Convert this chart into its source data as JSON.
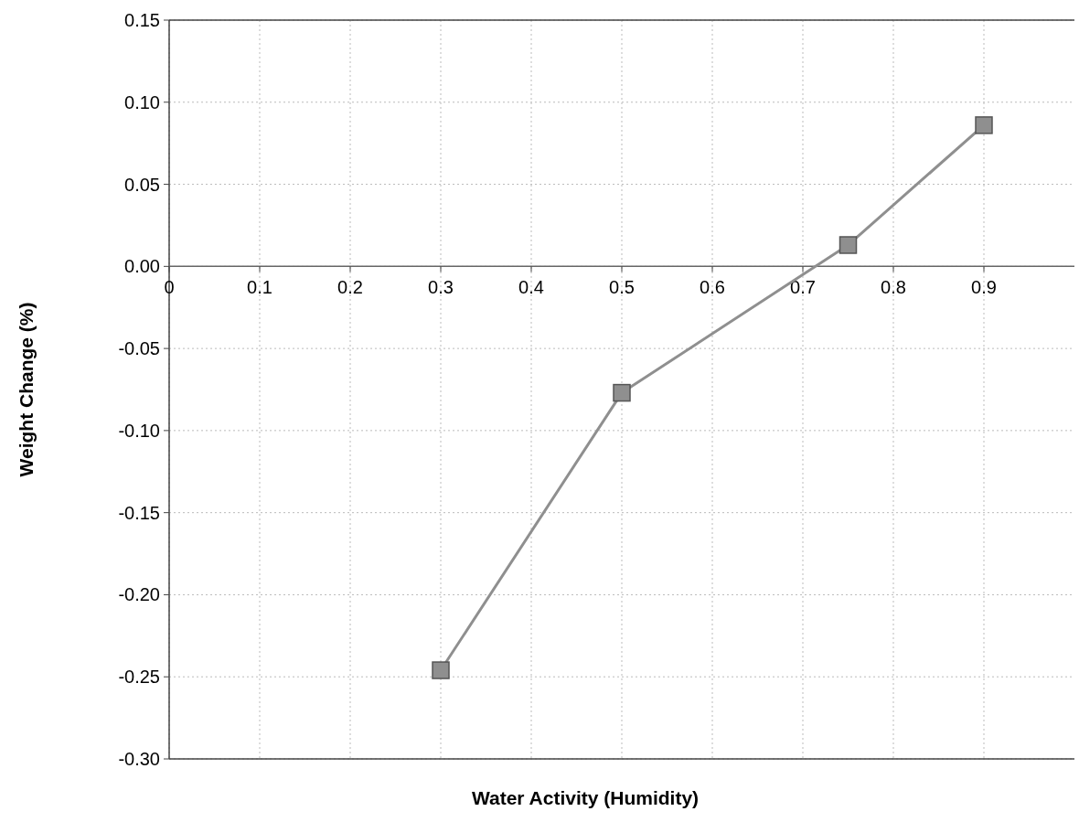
{
  "chart_data": {
    "type": "line",
    "xlabel": "Water Activity (Humidity)",
    "ylabel": "Weight Change (%)",
    "x": [
      0.3,
      0.5,
      0.75,
      0.9
    ],
    "series": [
      {
        "color": "#8f8f8f",
        "values": [
          -0.246,
          -0.077,
          0.013,
          0.086
        ]
      }
    ],
    "xlim": [
      0,
      1
    ],
    "xticks": [
      0,
      0.1,
      0.2,
      0.3,
      0.4,
      0.5,
      0.6,
      0.7,
      0.8,
      0.9
    ],
    "ylim": [
      -0.3,
      0.15
    ],
    "yticks": [
      {
        "value": -0.3,
        "label": "-0.30"
      },
      {
        "value": -0.25,
        "label": "-0.25"
      },
      {
        "value": -0.2,
        "label": "-0.20"
      },
      {
        "value": -0.15,
        "label": "-0.15"
      },
      {
        "value": -0.1,
        "label": "-0.10"
      },
      {
        "value": -0.05,
        "label": "-0.05"
      },
      {
        "value": 0,
        "label": "0.00"
      },
      {
        "value": 0.05,
        "label": "0.05"
      },
      {
        "value": 0.1,
        "label": "0.10"
      },
      {
        "value": 0.15,
        "label": "0.15"
      }
    ],
    "grid": true,
    "marker": "square",
    "line_style": "solid"
  }
}
